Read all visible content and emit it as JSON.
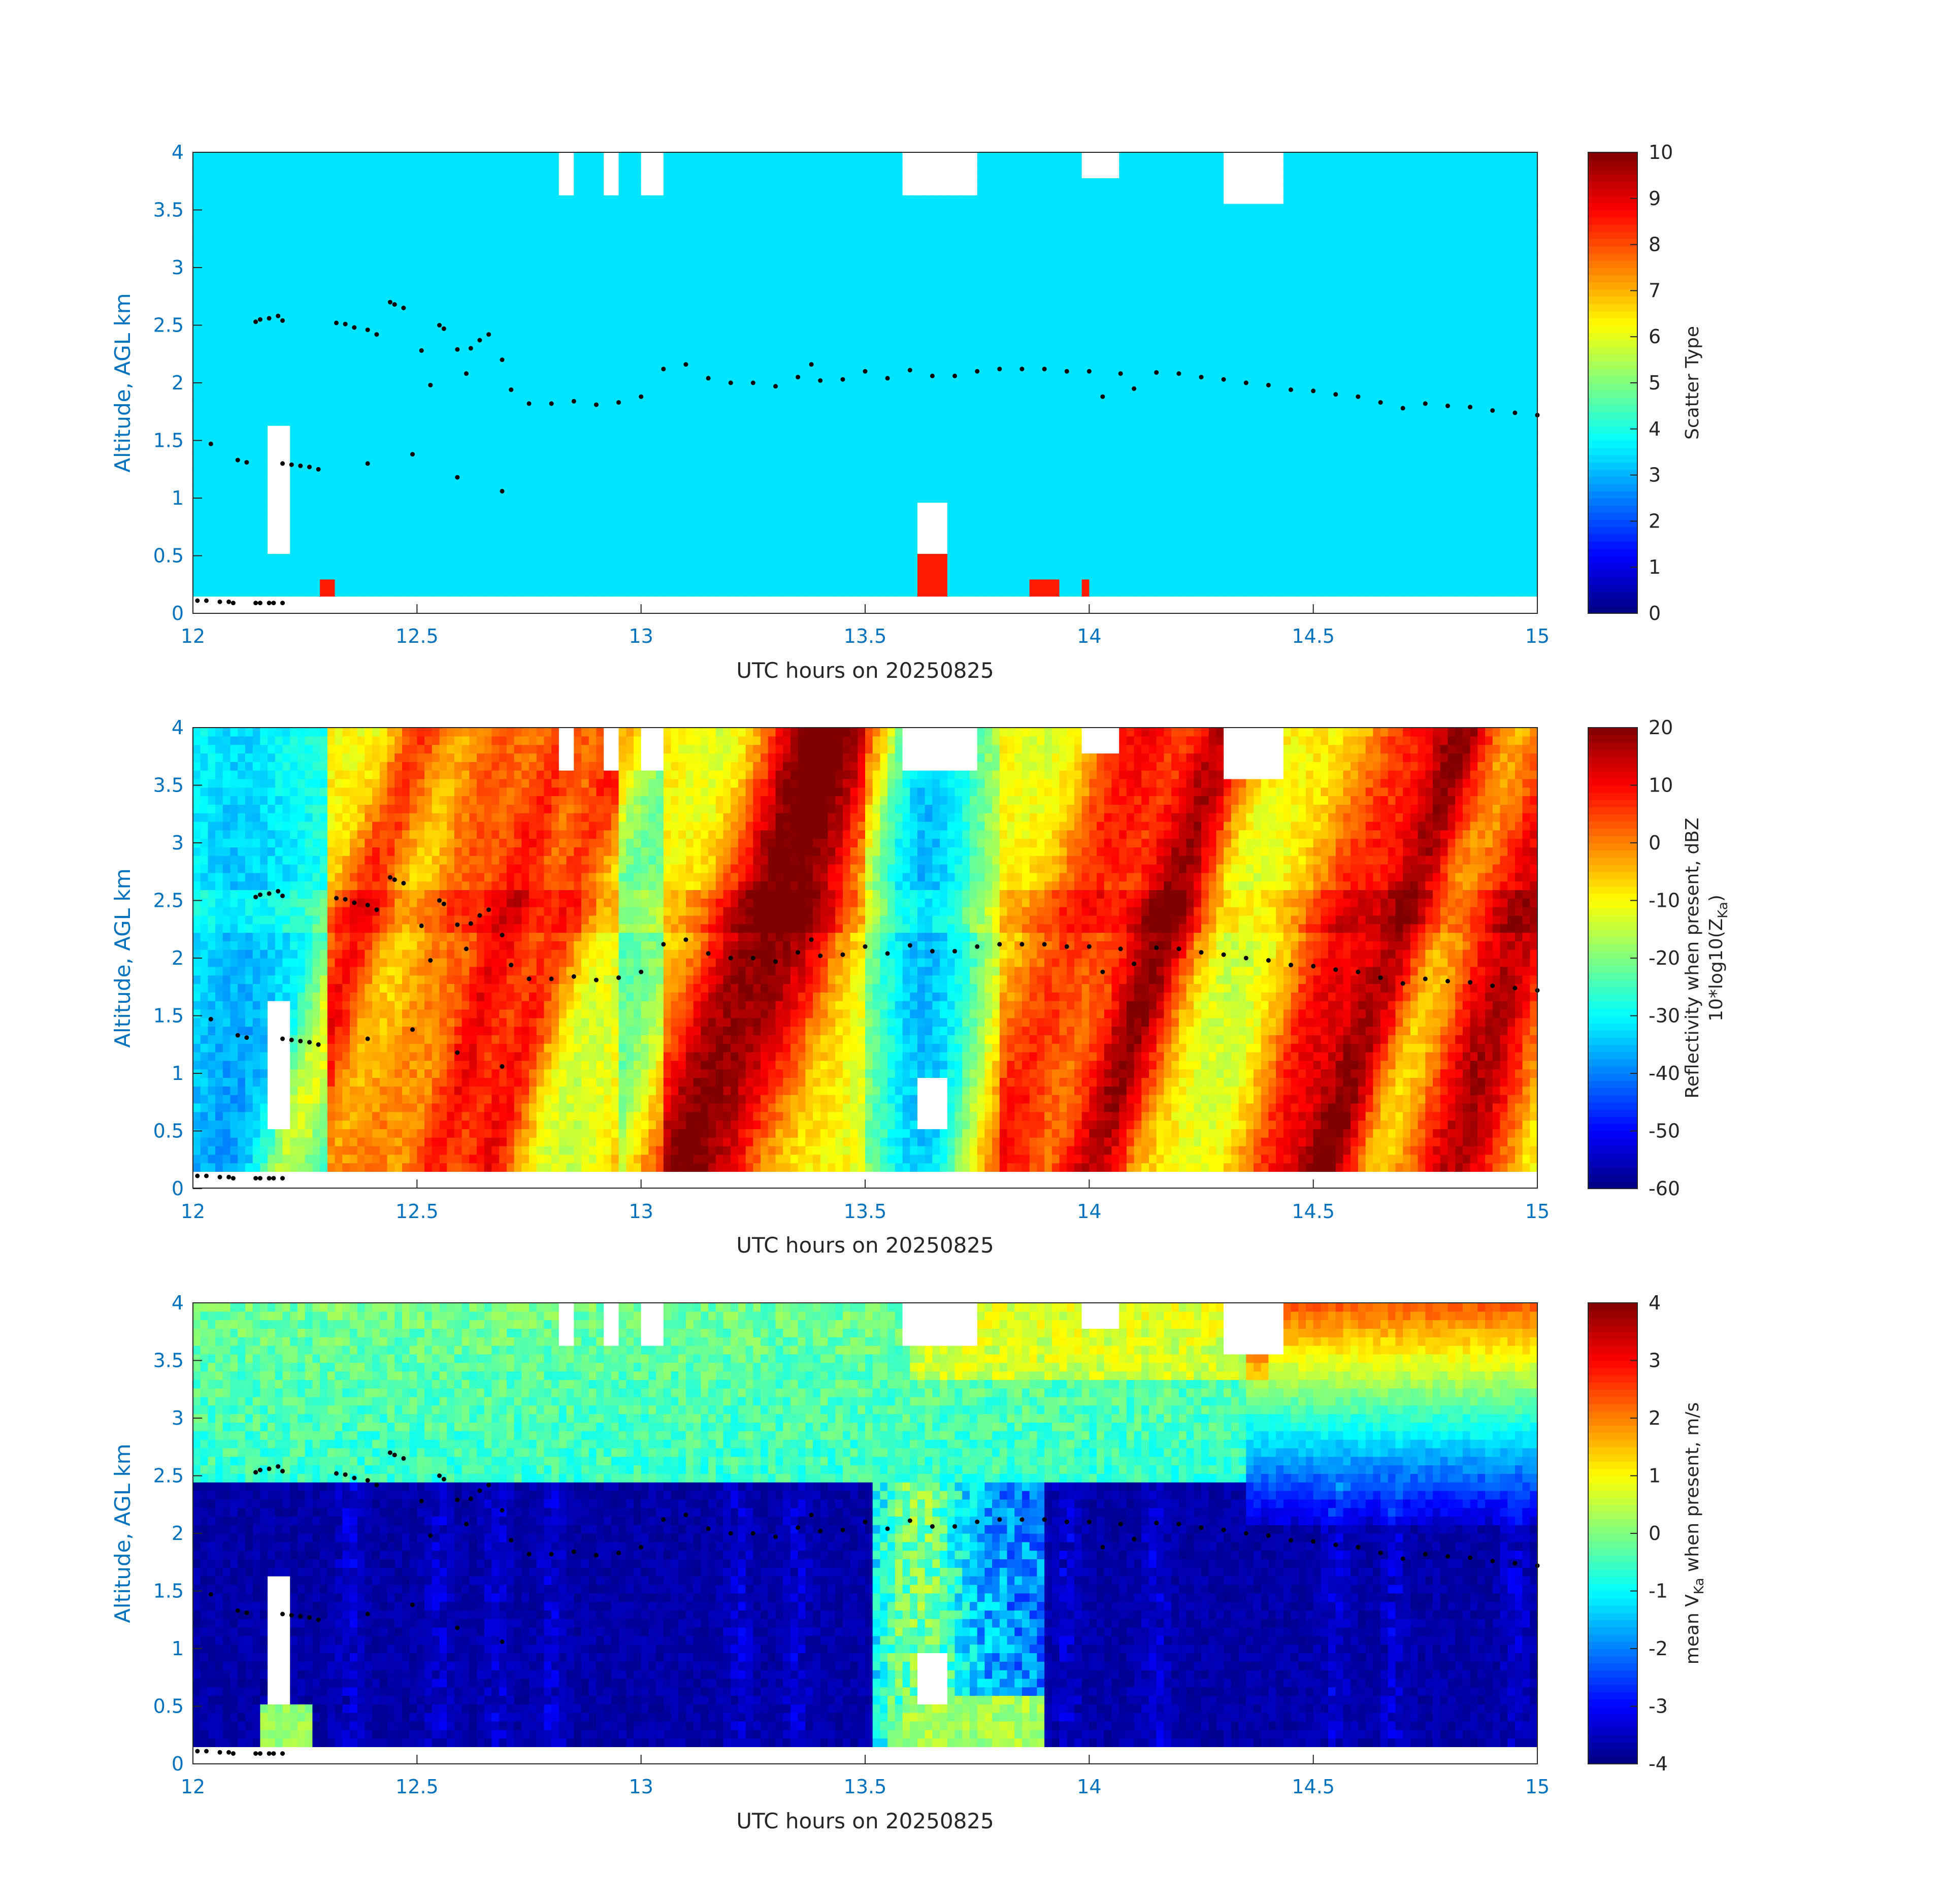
{
  "figure": {
    "xlabel": "UTC hours on 20250825",
    "ylabel": "Altitude, AGL km"
  },
  "chart_data": [
    {
      "type": "heatmap",
      "name": "scatter-type",
      "x_range": [
        12,
        15
      ],
      "y_range": [
        0,
        4
      ],
      "xticks": [
        "12",
        "12.5",
        "13",
        "13.5",
        "14",
        "14.5",
        "15"
      ],
      "yticks": [
        "0",
        "0.5",
        "1",
        "1.5",
        "2",
        "2.5",
        "3",
        "3.5",
        "4"
      ],
      "xlabel": "UTC hours on 20250825",
      "ylabel": "Altitude, AGL km",
      "colorbar": {
        "label": "Scatter Type",
        "range": [
          0,
          10
        ],
        "ticks": [
          "0",
          "1",
          "2",
          "3",
          "4",
          "5",
          "6",
          "7",
          "8",
          "9",
          "10"
        ]
      },
      "field": "scatter_type",
      "dominant_value": 3.5,
      "secondary_value": 8.5,
      "colormap": "jet"
    },
    {
      "type": "heatmap",
      "name": "reflectivity",
      "x_range": [
        12,
        15
      ],
      "y_range": [
        0,
        4
      ],
      "xticks": [
        "12",
        "12.5",
        "13",
        "13.5",
        "14",
        "14.5",
        "15"
      ],
      "yticks": [
        "0",
        "0.5",
        "1",
        "1.5",
        "2",
        "2.5",
        "3",
        "3.5",
        "4"
      ],
      "xlabel": "UTC hours on 20250825",
      "ylabel": "Altitude, AGL km",
      "colorbar": {
        "label_line1": "Reflectivity when present, dBZ",
        "label_line2_prefix": "10*log10(Z",
        "label_line2_sub": "Ka",
        "label_line2_suffix": ")",
        "range": [
          -60,
          20
        ],
        "ticks": [
          "-60",
          "-50",
          "-40",
          "-30",
          "-20",
          "-10",
          "0",
          "10",
          "20"
        ]
      },
      "field": "reflectivity_dbz",
      "colormap": "jet"
    },
    {
      "type": "heatmap",
      "name": "mean-velocity",
      "x_range": [
        12,
        15
      ],
      "y_range": [
        0,
        4
      ],
      "xticks": [
        "12",
        "12.5",
        "13",
        "13.5",
        "14",
        "14.5",
        "15"
      ],
      "yticks": [
        "0",
        "0.5",
        "1",
        "1.5",
        "2",
        "2.5",
        "3",
        "3.5",
        "4"
      ],
      "xlabel": "UTC hours on 20250825",
      "ylabel": "Altitude, AGL km",
      "colorbar": {
        "label_prefix": "mean V",
        "label_sub": "Ka",
        "label_suffix": " when present, m/s",
        "range": [
          -4,
          4
        ],
        "ticks": [
          "-4",
          "-3",
          "-2",
          "-1",
          "0",
          "1",
          "2",
          "3",
          "4"
        ]
      },
      "field": "mean_velocity_ms",
      "colormap": "jet"
    }
  ],
  "overlay_points": {
    "color": "#000000",
    "cloud_top_x": [
      12.04,
      12.14,
      12.15,
      12.17,
      12.19,
      12.2,
      12.32,
      12.34,
      12.36,
      12.39,
      12.41,
      12.44,
      12.45,
      12.47,
      12.51,
      12.53,
      12.55,
      12.56,
      12.59,
      12.61,
      12.62,
      12.64,
      12.66,
      12.69,
      12.71,
      12.75,
      12.8,
      12.85,
      12.9,
      12.95,
      13.0,
      13.05,
      13.1,
      13.15,
      13.2,
      13.25,
      13.3,
      13.35,
      13.38,
      13.4,
      13.45,
      13.5,
      13.55,
      13.6,
      13.65,
      13.7,
      13.75,
      13.8,
      13.85,
      13.9,
      13.95,
      14.0,
      14.03,
      14.07,
      14.1,
      14.15,
      14.2,
      14.25,
      14.3,
      14.35,
      14.4,
      14.45,
      14.5,
      14.55,
      14.6,
      14.65,
      14.7,
      14.75,
      14.8,
      14.85,
      14.9,
      14.95,
      15.0
    ],
    "cloud_top_y": [
      1.47,
      2.53,
      2.55,
      2.56,
      2.58,
      2.54,
      2.52,
      2.51,
      2.48,
      2.46,
      2.42,
      2.7,
      2.68,
      2.65,
      2.28,
      1.98,
      2.5,
      2.47,
      2.29,
      2.08,
      2.3,
      2.37,
      2.42,
      2.2,
      1.94,
      1.82,
      1.82,
      1.84,
      1.81,
      1.83,
      1.88,
      2.12,
      2.16,
      2.04,
      2.0,
      2.0,
      1.97,
      2.05,
      2.16,
      2.02,
      2.03,
      2.1,
      2.04,
      2.11,
      2.06,
      2.06,
      2.1,
      2.12,
      2.12,
      2.12,
      2.1,
      2.1,
      1.88,
      2.08,
      1.95,
      2.09,
      2.08,
      2.05,
      2.03,
      2.0,
      1.98,
      1.94,
      1.93,
      1.9,
      1.88,
      1.83,
      1.78,
      1.82,
      1.8,
      1.79,
      1.76,
      1.74,
      1.72
    ],
    "low_x": [
      12.1,
      12.12,
      12.2,
      12.22,
      12.24,
      12.26,
      12.28,
      12.39,
      12.49,
      12.59,
      12.69
    ],
    "low_y": [
      1.33,
      1.31,
      1.3,
      1.29,
      1.28,
      1.27,
      1.25,
      1.3,
      1.38,
      1.18,
      1.06
    ],
    "surface_x": [
      12.01,
      12.03,
      12.06,
      12.08,
      12.09,
      12.14,
      12.15,
      12.17,
      12.18,
      12.2
    ],
    "surface_y": [
      0.11,
      0.11,
      0.1,
      0.1,
      0.09,
      0.09,
      0.09,
      0.09,
      0.09,
      0.09
    ]
  }
}
